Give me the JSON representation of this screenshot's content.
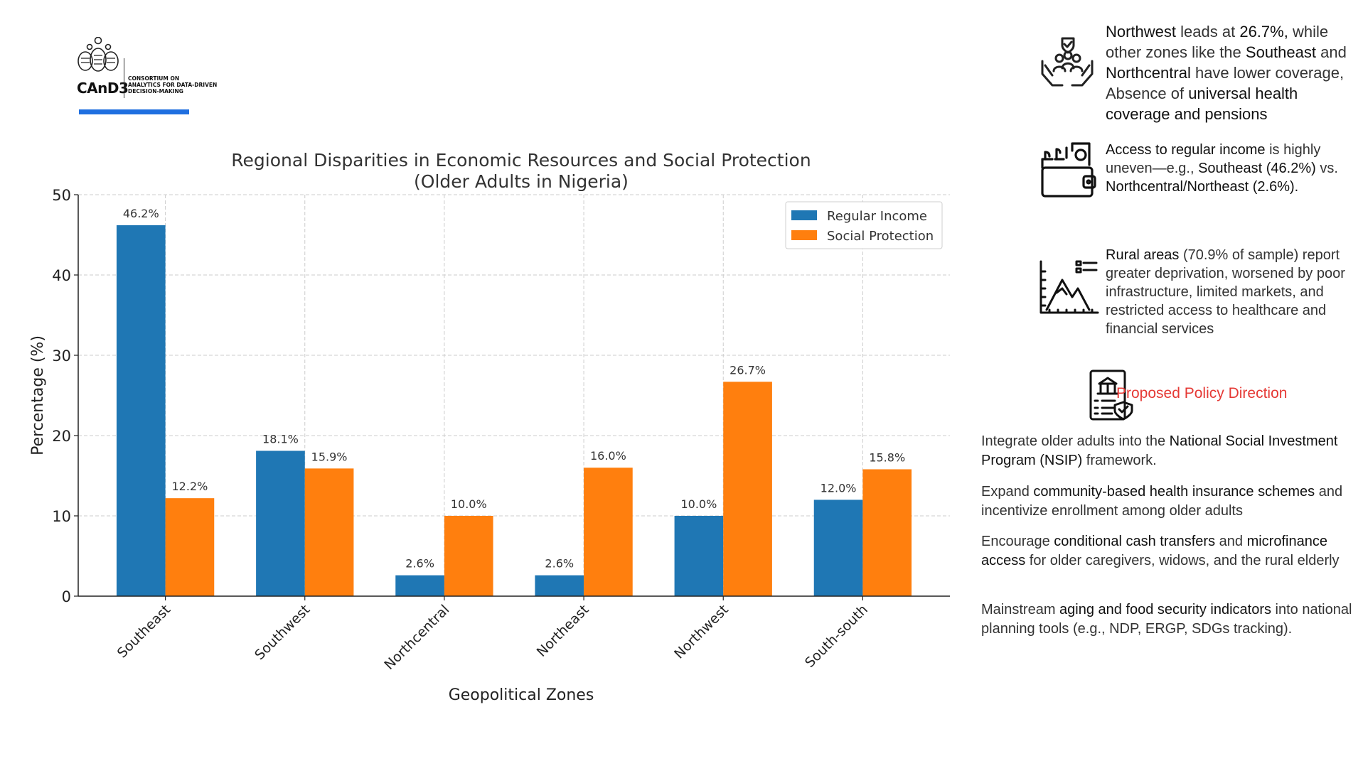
{
  "logo": {
    "wordmark": "CAnD3",
    "subtitle_lines": [
      "CONSORTIUM ON",
      "ANALYTICS FOR DATA-DRIVEN",
      "DECISION-MAKING"
    ],
    "accent_color": "#1f6fe0"
  },
  "chart_data": {
    "type": "bar",
    "title": "Regional Disparities in Economic Resources and Social Protection",
    "subtitle": "(Older Adults in Nigeria)",
    "xlabel": "Geopolitical Zones",
    "ylabel": "Percentage (%)",
    "ylim": [
      0,
      50
    ],
    "yticks": [
      0,
      10,
      20,
      30,
      40,
      50
    ],
    "grid": true,
    "legend_position": "top-right",
    "categories": [
      "Southeast",
      "Southwest",
      "Northcentral",
      "Northeast",
      "Northwest",
      "South-south"
    ],
    "series": [
      {
        "name": "Regular Income",
        "color": "#1f77b4",
        "values": [
          46.2,
          18.1,
          2.6,
          2.6,
          10.0,
          12.0
        ],
        "labels": [
          "46.2%",
          "18.1%",
          "2.6%",
          "2.6%",
          "10.0%",
          "12.0%"
        ]
      },
      {
        "name": "Social Protection",
        "color": "#ff7f0e",
        "values": [
          12.2,
          15.9,
          10.0,
          16.0,
          26.7,
          15.8
        ],
        "labels": [
          "12.2%",
          "15.9%",
          "10.0%",
          "16.0%",
          "26.7%",
          "15.8%"
        ]
      }
    ]
  },
  "insights": [
    {
      "icon": "care-hands-icon",
      "segments": [
        {
          "b": "Northwest"
        },
        {
          "t": " leads at "
        },
        {
          "b": "26.7%,"
        },
        {
          "t": " while other zones like the "
        },
        {
          "b": "Southeast"
        },
        {
          "t": " and "
        },
        {
          "b": "Northcentral"
        },
        {
          "t": " have lower coverage, Absence of "
        },
        {
          "b": "universal health coverage and pensions"
        }
      ]
    },
    {
      "icon": "wallet-icon",
      "segments": [
        {
          "b": "Access to regular income"
        },
        {
          "t": " is highly uneven—e.g., "
        },
        {
          "b": "Southeast"
        },
        {
          "t": " "
        },
        {
          "b": "(46.2%)"
        },
        {
          "t": " vs. "
        },
        {
          "b": "Northcentral/Northeast (2.6%)."
        }
      ]
    },
    {
      "icon": "rural-chart-icon",
      "segments": [
        {
          "b": "Rural areas"
        },
        {
          "t": " (70.9% of sample) report greater deprivation, worsened by poor infrastructure, limited markets, and restricted access to healthcare and financial services"
        }
      ]
    }
  ],
  "policy": {
    "icon": "policy-document-icon",
    "title": "Proposed Policy Direction",
    "title_color": "#e53935"
  },
  "recommendations": [
    {
      "segments": [
        {
          "t": "Integrate older adults into the "
        },
        {
          "b": "National Social Investment Program (NSIP)"
        },
        {
          "t": " framework."
        }
      ]
    },
    {
      "segments": [
        {
          "t": "Expand "
        },
        {
          "b": "community-based health insurance schemes"
        },
        {
          "t": " and incentivize enrollment among older adults"
        }
      ]
    },
    {
      "segments": [
        {
          "t": "Encourage "
        },
        {
          "b": "conditional cash transfers"
        },
        {
          "t": " and "
        },
        {
          "b": "microfinance access"
        },
        {
          "t": " for older caregivers, widows, and the rural elderly"
        }
      ]
    },
    {
      "segments": [
        {
          "t": "Mainstream "
        },
        {
          "b": "aging and food security indicators"
        },
        {
          "t": " into national planning tools (e.g., NDP, ERGP, SDGs tracking)."
        }
      ]
    }
  ]
}
